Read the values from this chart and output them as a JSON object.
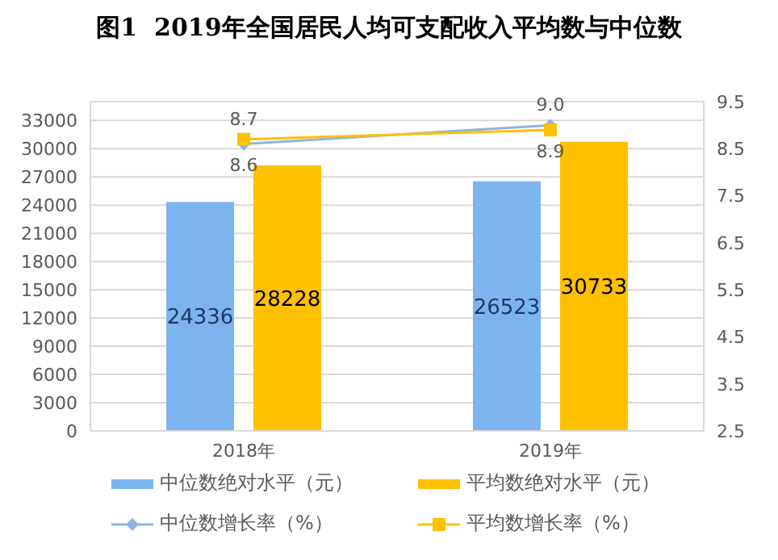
{
  "chart_data": {
    "type": "bar",
    "title": "图1  2019年全国居民人均可支配收入平均数与中位数",
    "categories": [
      "2018年",
      "2019年"
    ],
    "series": [
      {
        "name": "中位数绝对水平（元）",
        "color": "#7cb4f0",
        "values": [
          24336,
          26523
        ]
      },
      {
        "name": "平均数绝对水平（元）",
        "color": "#ffc000",
        "values": [
          28228,
          30733
        ]
      },
      {
        "name": "中位数增长率（%）",
        "type": "line",
        "axis": "y2",
        "color": "#8db4e2",
        "marker": "diamond",
        "values": [
          8.6,
          9.0
        ],
        "value_labels": [
          "8.6",
          "9.0"
        ]
      },
      {
        "name": "平均数增长率（%）",
        "type": "line",
        "axis": "y2",
        "color": "#ffc000",
        "marker": "square",
        "values": [
          8.7,
          8.9
        ],
        "value_labels": [
          "8.7",
          "8.9"
        ]
      }
    ],
    "ylim": [
      0,
      35000
    ],
    "yticks": [
      0,
      3000,
      6000,
      9000,
      12000,
      15000,
      18000,
      21000,
      24000,
      27000,
      30000,
      33000
    ],
    "y2lim": [
      2.5,
      9.5
    ],
    "y2ticks": [
      2.5,
      3.5,
      4.5,
      5.5,
      6.5,
      7.5,
      8.5,
      9.5
    ],
    "grid": "y",
    "legend": "bottom",
    "data_labels": true
  }
}
